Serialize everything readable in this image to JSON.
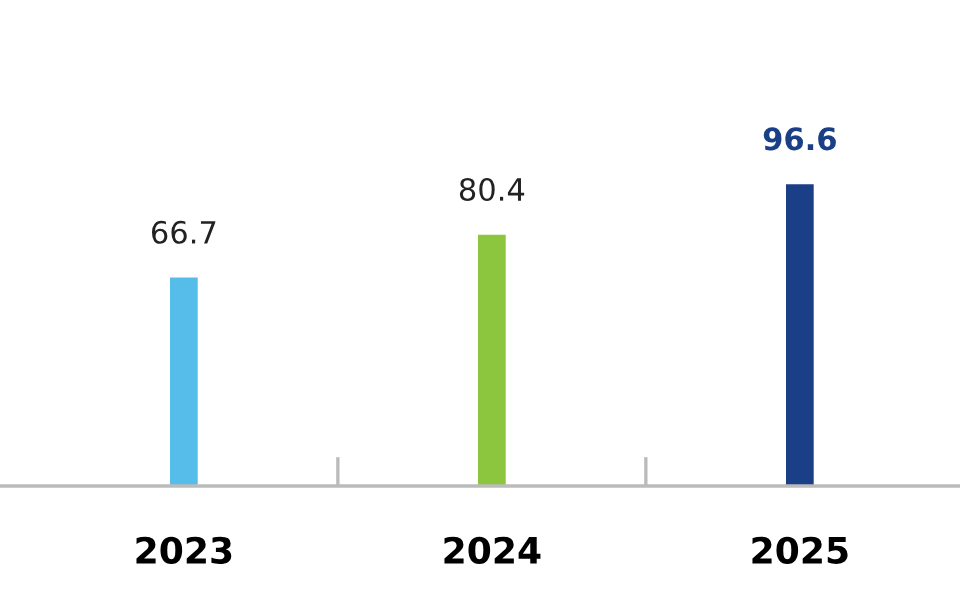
{
  "chart_data": {
    "type": "bar",
    "categories": [
      "2023",
      "2024",
      "2025"
    ],
    "values": [
      66.7,
      80.4,
      96.6
    ],
    "colors": [
      "#56bdea",
      "#8cc63e",
      "#1b3f87"
    ],
    "data_labels": true,
    "grid": false,
    "legend": false
  }
}
